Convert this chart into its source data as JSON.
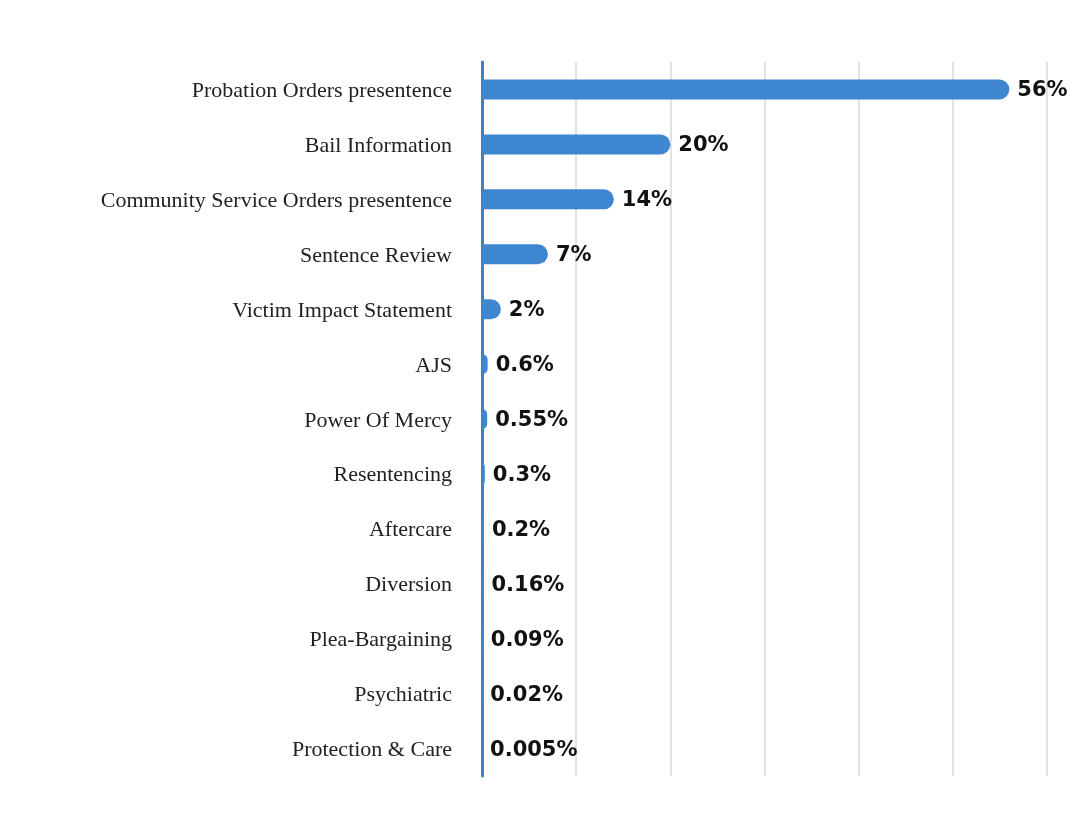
{
  "chart_data": {
    "type": "bar",
    "orientation": "horizontal",
    "categories": [
      "Probation Orders presentence",
      "Bail Information",
      "Community Service Orders presentence",
      "Sentence Review",
      "Victim Impact Statement",
      "AJS",
      "Power Of Mercy",
      "Resentencing",
      "Aftercare",
      "Diversion",
      "Plea-Bargaining",
      "Psychiatric",
      "Protection & Care"
    ],
    "values": [
      56,
      20,
      14,
      7,
      2,
      0.6,
      0.55,
      0.3,
      0.2,
      0.16,
      0.09,
      0.02,
      0.005
    ],
    "value_labels": [
      "56%",
      "20%",
      "14%",
      "7%",
      "2%",
      "0.6%",
      "0.55%",
      "0.3%",
      "0.2%",
      "0.16%",
      "0.09%",
      "0.02%",
      "0.005%"
    ],
    "color": "#3f86d0",
    "xlim": [
      0,
      60
    ],
    "xticks": [
      {
        "value": 0,
        "label": null
      },
      {
        "value": 10,
        "label": null
      },
      {
        "value": 20,
        "label": null
      },
      {
        "value": 30,
        "label": null
      },
      {
        "value": 40,
        "label": null
      },
      {
        "value": 50,
        "label": null
      },
      {
        "value": 60,
        "label": null
      }
    ],
    "grid": "x",
    "tick_labels": "y"
  }
}
